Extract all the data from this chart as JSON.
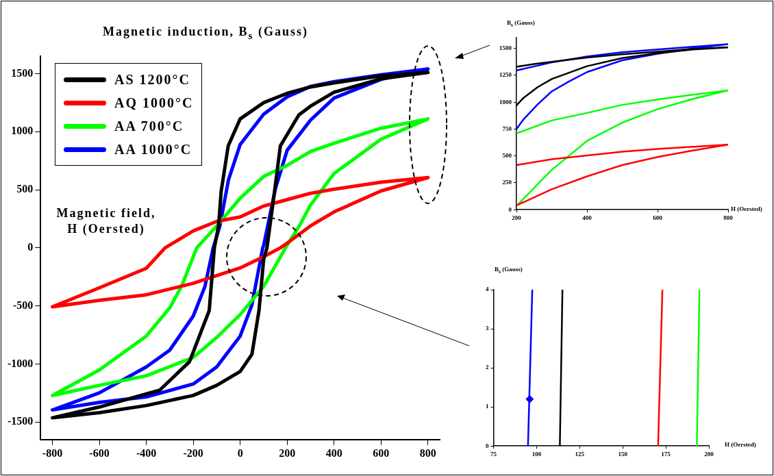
{
  "chart_data": [
    {
      "type": "line",
      "ylabel": "Magnetic induction, B$_{s}$ (Gauss)",
      "xlabel": "Magnetic field, H (Oersted)",
      "xlim": [
        -850,
        850
      ],
      "ylim": [
        -1650,
        1650
      ],
      "xticks": [
        -800,
        -600,
        -400,
        -200,
        0,
        200,
        400,
        600,
        800
      ],
      "yticks": [
        -1500,
        -1000,
        -500,
        0,
        500,
        1000,
        1500
      ],
      "grid": false,
      "legend": "top left",
      "series": [
        {
          "name": "AS 1200°C",
          "color": "#000000",
          "x": [
            -800,
            -600,
            -400,
            -200,
            -100,
            0,
            50,
            80,
            100,
            114,
            148,
            171,
            250,
            300,
            400,
            600,
            800,
            600,
            400,
            300,
            200,
            100,
            0,
            -51,
            -81,
            -92,
            -110,
            -132,
            -216,
            -343,
            -600,
            -795
          ],
          "values": [
            -1462,
            -1418,
            -1357,
            -1270,
            -1183,
            -1064,
            -917,
            -540,
            -100,
            0,
            510,
            878,
            1145,
            1220,
            1340,
            1455,
            1510,
            1480,
            1420,
            1385,
            1330,
            1250,
            1110,
            878,
            486,
            193,
            0,
            -540,
            -980,
            -1225,
            -1370,
            -1460
          ]
        },
        {
          "name": "AQ 1000°C",
          "color": "#ff0000",
          "x": [
            -800,
            -600,
            -400,
            -200,
            0,
            100,
            171,
            200,
            300,
            400,
            600,
            800,
            600,
            400,
            300,
            200,
            100,
            0,
            -100,
            -200,
            -320,
            -400,
            -600,
            -795
          ],
          "values": [
            -507,
            -451,
            -404,
            -305,
            -173,
            -76,
            0,
            40,
            190,
            310,
            490,
            605,
            565,
            505,
            470,
            415,
            360,
            266,
            228,
            146,
            0,
            -176,
            -344,
            -503
          ]
        },
        {
          "name": "AA 700°C",
          "color": "#00ff00",
          "x": [
            -800,
            -600,
            -400,
            -200,
            -100,
            0,
            100,
            193,
            253,
            300,
            400,
            600,
            800,
            600,
            400,
            300,
            200,
            100,
            0,
            -98,
            -185,
            -250,
            -300,
            -400,
            -600,
            -795
          ],
          "values": [
            -1271,
            -1183,
            -1101,
            -943,
            -771,
            -574,
            -331,
            0,
            193,
            370,
            640,
            935,
            1110,
            1030,
            900,
            830,
            710,
            615,
            428,
            193,
            0,
            -331,
            -516,
            -759,
            -1051,
            -1265
          ]
        },
        {
          "name": "AA 1000°C",
          "color": "#0000ff",
          "x": [
            -800,
            -600,
            -400,
            -200,
            -100,
            0,
            50,
            96,
            100,
            150,
            200,
            300,
            400,
            600,
            800,
            600,
            400,
            300,
            200,
            100,
            0,
            -50,
            -86,
            -115,
            -150,
            -200,
            -300,
            -400,
            -600,
            -795
          ],
          "values": [
            -1395,
            -1330,
            -1283,
            -1172,
            -1025,
            -759,
            -490,
            0,
            20,
            510,
            840,
            1100,
            1290,
            1450,
            1540,
            1490,
            1430,
            1390,
            1300,
            1150,
            890,
            585,
            193,
            0,
            -331,
            -587,
            -880,
            -1025,
            -1248,
            -1392
          ]
        }
      ]
    },
    {
      "type": "line",
      "ylabel": "B$_{s}$ (Gauss)",
      "xlabel": "H (Oersted)",
      "xlim": [
        200,
        800
      ],
      "ylim": [
        0,
        1600
      ],
      "xticks": [
        200,
        400,
        600,
        800
      ],
      "yticks": [
        0,
        250,
        500,
        750,
        1000,
        1250,
        1500
      ],
      "grid": false,
      "series": [
        {
          "color": "#000000",
          "x": [
            200,
            220,
            260,
            300,
            400,
            500,
            600,
            700,
            800,
            700,
            600,
            500,
            400,
            300,
            250,
            200
          ],
          "values": [
            970,
            1040,
            1140,
            1215,
            1335,
            1410,
            1455,
            1490,
            1510,
            1495,
            1470,
            1445,
            1415,
            1375,
            1355,
            1330
          ]
        },
        {
          "color": "#ff0000",
          "x": [
            200,
            300,
            400,
            500,
            600,
            700,
            800,
            700,
            600,
            500,
            400,
            300,
            200
          ],
          "values": [
            40,
            190,
            310,
            415,
            490,
            550,
            605,
            585,
            565,
            540,
            505,
            470,
            415
          ]
        },
        {
          "color": "#00ff00",
          "x": [
            200,
            300,
            400,
            500,
            600,
            700,
            800,
            700,
            600,
            500,
            400,
            300,
            200
          ],
          "values": [
            35,
            370,
            640,
            810,
            935,
            1030,
            1110,
            1070,
            1025,
            975,
            900,
            830,
            710
          ]
        },
        {
          "color": "#0000ff",
          "x": [
            200,
            220,
            260,
            300,
            350,
            400,
            500,
            600,
            700,
            800,
            700,
            600,
            500,
            400,
            300,
            200
          ],
          "values": [
            750,
            840,
            980,
            1100,
            1195,
            1280,
            1390,
            1450,
            1500,
            1540,
            1515,
            1490,
            1465,
            1425,
            1370,
            1295
          ]
        }
      ]
    },
    {
      "type": "line",
      "ylabel": "B$_{s}$ (Gauss)",
      "xlabel": "H (Oersted)",
      "xlim": [
        75,
        200
      ],
      "ylim": [
        0,
        4
      ],
      "xticks": [
        75,
        100,
        125,
        150,
        175,
        200
      ],
      "yticks": [
        0,
        1,
        2,
        3,
        4
      ],
      "grid": false,
      "series": [
        {
          "color": "#0000ff",
          "x": [
            95,
            97.5
          ],
          "values": [
            0,
            4
          ]
        },
        {
          "color": "#000000",
          "x": [
            113.5,
            115
          ],
          "values": [
            0,
            4
          ]
        },
        {
          "color": "#ff0000",
          "x": [
            170.5,
            173
          ],
          "values": [
            0,
            4
          ]
        },
        {
          "color": "#00ff00",
          "x": [
            193,
            194.5
          ],
          "values": [
            0,
            4
          ]
        },
        {
          "type": "scatter",
          "marker": "diamond",
          "color": "#0000ff",
          "x": [
            96
          ],
          "values": [
            1.2
          ]
        }
      ]
    }
  ]
}
